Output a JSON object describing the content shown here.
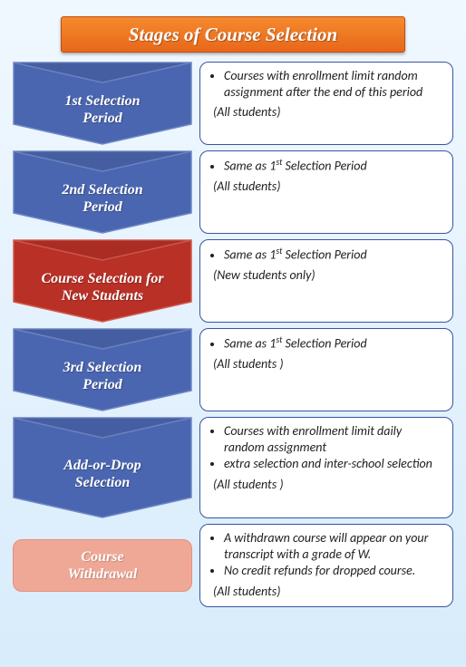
{
  "title": "Stages of Course Selection",
  "colors": {
    "title_bg_top": "#f58a2e",
    "title_bg_bottom": "#e8671a",
    "title_border": "#c04f10",
    "blue_fill": "#4b66b0",
    "blue_stroke": "#6f87c6",
    "red_fill": "#b93026",
    "red_stroke": "#d25a50",
    "pink_fill": "#f0a896",
    "pink_stroke": "#e5907f",
    "desc_border": "#3a54a0",
    "page_bg_top": "#f0f8ff",
    "page_bg_bottom": "#d8ecfb"
  },
  "stages": [
    {
      "shape": "chevron",
      "fill": "#4b66b0",
      "stroke": "#6f87c6",
      "label_html": "1st Selection<br>Period",
      "bullets_html": [
        "Courses with enrollment limit random assignment after the end of this period"
      ],
      "audience": "(All  students)",
      "h": 92
    },
    {
      "shape": "chevron",
      "fill": "#4b66b0",
      "stroke": "#6f87c6",
      "label_html": "2nd Selection<br>Period",
      "bullets_html": [
        "Same as 1<sup>st</sup> Selection Period"
      ],
      "audience": "(All  students)",
      "h": 92
    },
    {
      "shape": "chevron",
      "fill": "#b93026",
      "stroke": "#d25a50",
      "label_html": "Course Selection for<br>New Students",
      "bullets_html": [
        "Same as 1<sup>st</sup> Selection Period"
      ],
      "audience": "(New students only)",
      "h": 92
    },
    {
      "shape": "chevron",
      "fill": "#4b66b0",
      "stroke": "#6f87c6",
      "label_html": "3rd Selection<br>Period",
      "bullets_html": [
        "Same as 1<sup>st</sup> Selection Period"
      ],
      "audience": "(All  students )",
      "h": 92
    },
    {
      "shape": "chevron",
      "fill": "#4b66b0",
      "stroke": "#6f87c6",
      "label_html": "Add-or-Drop<br>Selection",
      "bullets_html": [
        "Courses with enrollment limit daily random assignment",
        "extra selection and inter-school selection"
      ],
      "audience": "(All  students )",
      "h": 112
    },
    {
      "shape": "pill",
      "fill": "#f0a896",
      "stroke": "#e5907f",
      "label_html": "Course<br>Withdrawal",
      "bullets_html": [
        "A withdrawn course will appear on your transcript with a grade of W.",
        "No credit refunds for dropped course."
      ],
      "audience": "(All  students)",
      "h": 92
    }
  ]
}
